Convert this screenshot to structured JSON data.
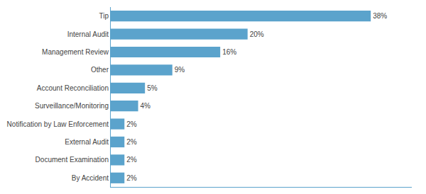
{
  "chart_data": {
    "type": "bar",
    "orientation": "horizontal",
    "categories": [
      "By Accident",
      "Document Examination",
      "External Audit",
      "Notification by Law Enforcement",
      "Surveillance/Monitoring",
      "Account Reconciliation",
      "Other",
      "Management Review",
      "Internal Audit",
      "Tip"
    ],
    "values": [
      2,
      2,
      2,
      2,
      4,
      5,
      9,
      16,
      20,
      38
    ],
    "value_labels": [
      "2%",
      "2%",
      "2%",
      "2%",
      "4%",
      "5%",
      "9%",
      "16%",
      "20%",
      "38%"
    ],
    "data_labels": true,
    "color": "#5ba3cc",
    "xlim": [
      0,
      44
    ],
    "xticks": [],
    "grid": false,
    "tick_labels": "y"
  }
}
